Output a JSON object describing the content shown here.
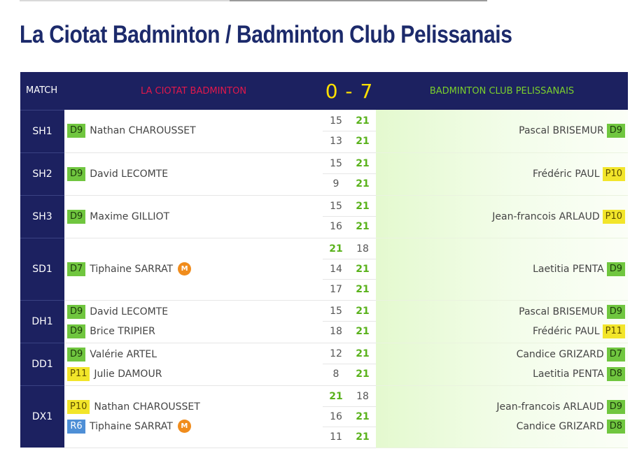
{
  "title": "La Ciotat Badminton / Badminton Club Pelissanais",
  "header": {
    "match_label": "MATCH",
    "home_team": "LA CIOTAT BADMINTON",
    "score": "0 - 7",
    "away_team": "BADMINTON CLUB PELISSANAIS"
  },
  "colors": {
    "header_bg": "#1c2160",
    "home_team": "#e2184b",
    "score": "#ffe000",
    "away_team": "#7bd02c",
    "winner_score": "#5ab21c",
    "badge_D": "#70c63f",
    "badge_P": "#f2e52a",
    "badge_R": "#4e8fd6",
    "mixed_icon": "#f08c1c"
  },
  "icons": {
    "mixed": "letter-m-circle-icon"
  },
  "matches": [
    {
      "label": "SH1",
      "home": [
        {
          "rank": "D9",
          "name": "Nathan CHAROUSSET"
        }
      ],
      "away": [
        {
          "rank": "D9",
          "name": "Pascal BRISEMUR"
        }
      ],
      "sets": [
        [
          "15",
          "21"
        ],
        [
          "13",
          "21"
        ]
      ]
    },
    {
      "label": "SH2",
      "home": [
        {
          "rank": "D9",
          "name": "David LECOMTE"
        }
      ],
      "away": [
        {
          "rank": "P10",
          "name": "Frédéric PAUL"
        }
      ],
      "sets": [
        [
          "15",
          "21"
        ],
        [
          "9",
          "21"
        ]
      ]
    },
    {
      "label": "SH3",
      "home": [
        {
          "rank": "D9",
          "name": "Maxime GILLIOT"
        }
      ],
      "away": [
        {
          "rank": "P10",
          "name": "Jean-francois ARLAUD"
        }
      ],
      "sets": [
        [
          "15",
          "21"
        ],
        [
          "16",
          "21"
        ]
      ]
    },
    {
      "label": "SD1",
      "home": [
        {
          "rank": "D7",
          "name": "Tiphaine SARRAT",
          "badge_text": "M"
        }
      ],
      "away": [
        {
          "rank": "D9",
          "name": "Laetitia PENTA"
        }
      ],
      "sets": [
        [
          "21",
          "18"
        ],
        [
          "14",
          "21"
        ],
        [
          "17",
          "21"
        ]
      ]
    },
    {
      "label": "DH1",
      "home": [
        {
          "rank": "D9",
          "name": "David LECOMTE"
        },
        {
          "rank": "D9",
          "name": "Brice TRIPIER"
        }
      ],
      "away": [
        {
          "rank": "D9",
          "name": "Pascal BRISEMUR"
        },
        {
          "rank": "P11",
          "name": "Frédéric PAUL"
        }
      ],
      "sets": [
        [
          "15",
          "21"
        ],
        [
          "18",
          "21"
        ]
      ]
    },
    {
      "label": "DD1",
      "home": [
        {
          "rank": "D9",
          "name": "Valérie ARTEL"
        },
        {
          "rank": "P11",
          "name": "Julie DAMOUR"
        }
      ],
      "away": [
        {
          "rank": "D7",
          "name": "Candice GRIZARD"
        },
        {
          "rank": "D8",
          "name": "Laetitia PENTA"
        }
      ],
      "sets": [
        [
          "12",
          "21"
        ],
        [
          "8",
          "21"
        ]
      ]
    },
    {
      "label": "DX1",
      "home": [
        {
          "rank": "P10",
          "name": "Nathan CHAROUSSET"
        },
        {
          "rank": "R6",
          "name": "Tiphaine SARRAT",
          "badge_text": "M"
        }
      ],
      "away": [
        {
          "rank": "D9",
          "name": "Jean-francois ARLAUD"
        },
        {
          "rank": "D8",
          "name": "Candice GRIZARD"
        }
      ],
      "sets": [
        [
          "21",
          "18"
        ],
        [
          "16",
          "21"
        ],
        [
          "11",
          "21"
        ]
      ]
    }
  ]
}
